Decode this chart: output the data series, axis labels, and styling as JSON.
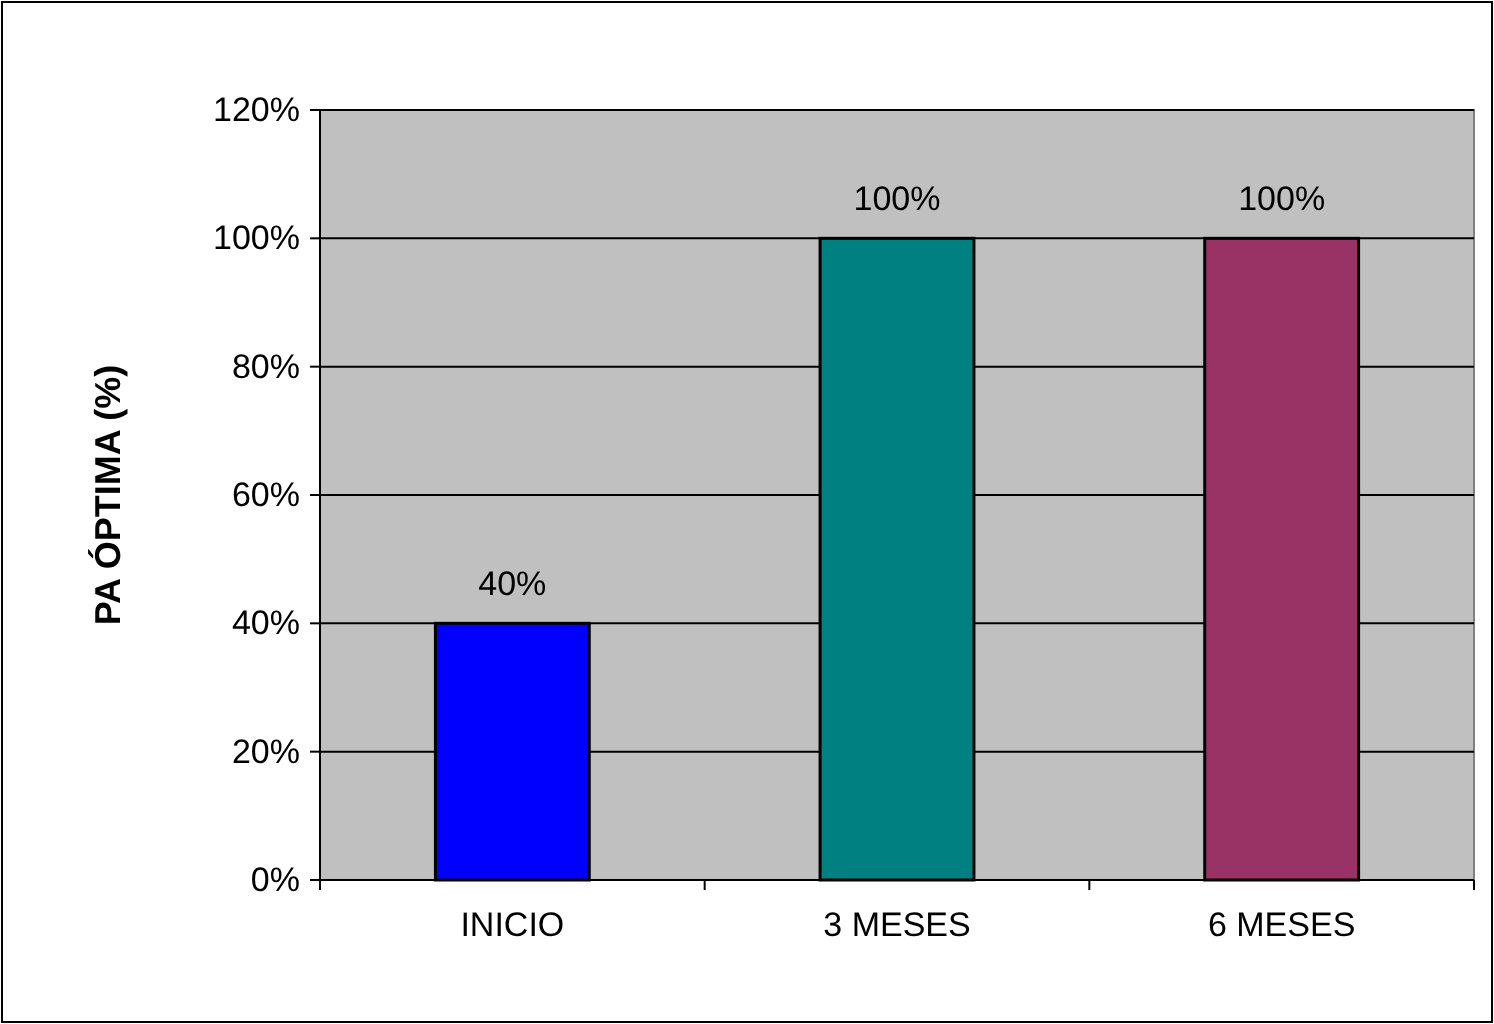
{
  "chart_data": {
    "type": "bar",
    "ylabel": "PA ÓPTIMA (%)",
    "categories": [
      "INICIO",
      "3 MESES",
      "6 MESES"
    ],
    "values": [
      40,
      100,
      100
    ],
    "colors": [
      "#0000ff",
      "#008080",
      "#993366"
    ],
    "value_labels": [
      "40%",
      "100%",
      "100%"
    ],
    "ylim": [
      0,
      120
    ],
    "yticks": [
      {
        "value": 0,
        "label": "0%"
      },
      {
        "value": 20,
        "label": "20%"
      },
      {
        "value": 40,
        "label": "40%"
      },
      {
        "value": 60,
        "label": "60%"
      },
      {
        "value": 80,
        "label": "80%"
      },
      {
        "value": 100,
        "label": "100%"
      },
      {
        "value": 120,
        "label": "120%"
      }
    ],
    "grid": "y"
  }
}
